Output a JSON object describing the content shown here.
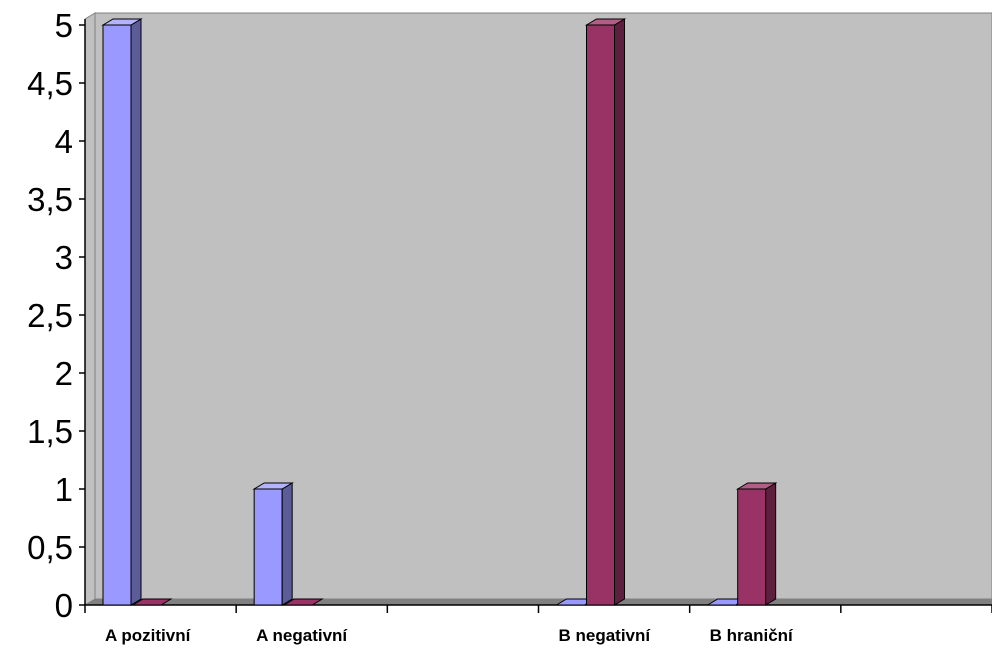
{
  "chart_data": {
    "type": "bar",
    "three_d": true,
    "categories": [
      "A pozitivní",
      "A negativní",
      "",
      "B negativní",
      "B hraniční",
      ""
    ],
    "series": [
      {
        "values": [
          5,
          1,
          0,
          0,
          0,
          0
        ],
        "color": "#9999ff",
        "side_color": "#5c5c99",
        "top_color": "#b3b3ff"
      },
      {
        "values": [
          0,
          0,
          0,
          5,
          1,
          0
        ],
        "color": "#993366",
        "side_color": "#5c1f3d",
        "top_color": "#b35c85"
      }
    ],
    "y_ticks": [
      "0",
      "0,5",
      "1",
      "1,5",
      "2",
      "2,5",
      "3",
      "3,5",
      "4",
      "4,5",
      "5"
    ],
    "ylim": [
      0,
      5
    ],
    "grid": false,
    "legend": "none",
    "plot_background": "#c0c0c0",
    "floor_color": "#808080"
  }
}
